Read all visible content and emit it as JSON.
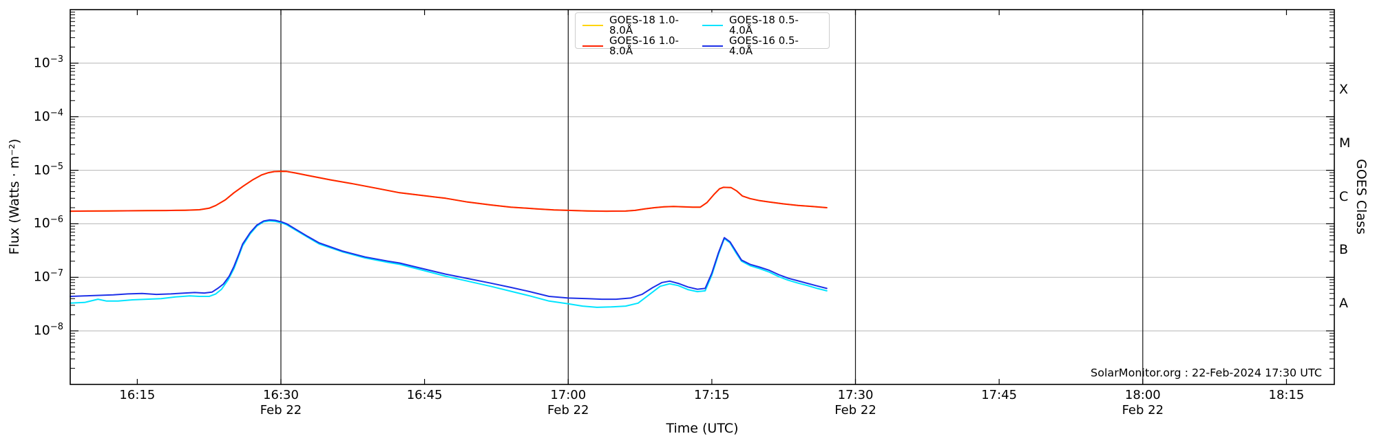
{
  "chart_data": {
    "type": "line",
    "title": "",
    "xlabel": "Time (UTC)",
    "ylabel": "Flux (Watts · m⁻²)",
    "ylabel_right": "GOES Class",
    "credit": "SolarMonitor.org : 22-Feb-2024 17:30 UTC",
    "x_axis": {
      "unit": "minutes after 16:00 UTC, 22-Feb-2024",
      "range_minutes": [
        8,
        140
      ],
      "major_ticks": [
        {
          "t": 15,
          "label": "16:15"
        },
        {
          "t": 30,
          "label": "16:30",
          "date": "Feb 22"
        },
        {
          "t": 45,
          "label": "16:45"
        },
        {
          "t": 60,
          "label": "17:00",
          "date": "Feb 22"
        },
        {
          "t": 75,
          "label": "17:15"
        },
        {
          "t": 90,
          "label": "17:30",
          "date": "Feb 22"
        },
        {
          "t": 105,
          "label": "17:45"
        },
        {
          "t": 120,
          "label": "18:00",
          "date": "Feb 22"
        },
        {
          "t": 135,
          "label": "18:15"
        }
      ],
      "vertical_lines_t": [
        30,
        60,
        90,
        120
      ]
    },
    "y_axis": {
      "scale": "log10",
      "unit": "W m^-2",
      "range_exponents": [
        -9,
        -2
      ],
      "labeled_exponents": [
        -3,
        -4,
        -5,
        -6,
        -7,
        -8
      ],
      "class_labels": [
        {
          "label": "X",
          "decade": -4
        },
        {
          "label": "M",
          "decade": -5
        },
        {
          "label": "C",
          "decade": -6
        },
        {
          "label": "B",
          "decade": -7
        },
        {
          "label": "A",
          "decade": -8
        }
      ]
    },
    "grid": {
      "horizontal_decades": [
        -3,
        -4,
        -5,
        -6,
        -7,
        -8
      ],
      "grid_color": "#b5b5b5",
      "vline_color": "#111111"
    },
    "legend": {
      "position": "top-center",
      "entries": [
        {
          "label": "GOES-18 1.0-8.0Å",
          "color": "#ffd400"
        },
        {
          "label": "GOES-16 1.0-8.0Å",
          "color": "#ff2200"
        },
        {
          "label": "GOES-18 0.5-4.0Å",
          "color": "#00e4ff"
        },
        {
          "label": "GOES-16 0.5-4.0Å",
          "color": "#1c2fe8"
        }
      ]
    },
    "series": [
      {
        "name": "GOES-18 1.0-8.0Å",
        "color": "#ffd400",
        "points": [
          [
            8,
            1.72e-06
          ],
          [
            10,
            1.73e-06
          ],
          [
            12,
            1.74e-06
          ],
          [
            14,
            1.75e-06
          ],
          [
            16,
            1.76e-06
          ],
          [
            18,
            1.77e-06
          ],
          [
            20,
            1.79e-06
          ],
          [
            21.5,
            1.83e-06
          ],
          [
            22.5,
            1.95e-06
          ],
          [
            23.2,
            2.2e-06
          ],
          [
            24.2,
            2.8e-06
          ],
          [
            25.1,
            3.8e-06
          ],
          [
            26.1,
            5.1e-06
          ],
          [
            27.1,
            6.7e-06
          ],
          [
            28,
            8.2e-06
          ],
          [
            28.7,
            9e-06
          ],
          [
            29.3,
            9.45e-06
          ],
          [
            30,
            9.55e-06
          ],
          [
            30.6,
            9.5e-06
          ],
          [
            31.5,
            8.9e-06
          ],
          [
            32.8,
            8e-06
          ],
          [
            35.2,
            6.6e-06
          ],
          [
            37.5,
            5.6e-06
          ],
          [
            40,
            4.6e-06
          ],
          [
            42.4,
            3.8e-06
          ],
          [
            45,
            3.35e-06
          ],
          [
            47.2,
            3e-06
          ],
          [
            49.5,
            2.55e-06
          ],
          [
            51.9,
            2.25e-06
          ],
          [
            54,
            2.05e-06
          ],
          [
            56.7,
            1.9e-06
          ],
          [
            58.5,
            1.82e-06
          ],
          [
            60,
            1.78e-06
          ],
          [
            62,
            1.74e-06
          ],
          [
            64,
            1.72e-06
          ],
          [
            66,
            1.73e-06
          ],
          [
            67,
            1.78e-06
          ],
          [
            68,
            1.9e-06
          ],
          [
            69,
            2e-06
          ],
          [
            70,
            2.07e-06
          ],
          [
            71,
            2.1e-06
          ],
          [
            72,
            2.08e-06
          ],
          [
            73,
            2.05e-06
          ],
          [
            73.8,
            2.05e-06
          ],
          [
            74.5,
            2.5e-06
          ],
          [
            75.2,
            3.5e-06
          ],
          [
            75.8,
            4.5e-06
          ],
          [
            76.2,
            4.8e-06
          ],
          [
            77,
            4.75e-06
          ],
          [
            77.6,
            4.1e-06
          ],
          [
            78.2,
            3.3e-06
          ],
          [
            79,
            2.95e-06
          ],
          [
            80,
            2.7e-06
          ],
          [
            81,
            2.55e-06
          ],
          [
            82.5,
            2.35e-06
          ],
          [
            84,
            2.2e-06
          ],
          [
            85.5,
            2.1e-06
          ],
          [
            87,
            2e-06
          ]
        ]
      },
      {
        "name": "GOES-16 1.0-8.0Å",
        "color": "#ff2200",
        "points": [
          [
            8,
            1.72e-06
          ],
          [
            10,
            1.73e-06
          ],
          [
            12,
            1.74e-06
          ],
          [
            14,
            1.75e-06
          ],
          [
            16,
            1.76e-06
          ],
          [
            18,
            1.77e-06
          ],
          [
            20,
            1.79e-06
          ],
          [
            21.5,
            1.83e-06
          ],
          [
            22.5,
            1.95e-06
          ],
          [
            23.2,
            2.2e-06
          ],
          [
            24.2,
            2.8e-06
          ],
          [
            25.1,
            3.8e-06
          ],
          [
            26.1,
            5.1e-06
          ],
          [
            27.1,
            6.7e-06
          ],
          [
            28,
            8.2e-06
          ],
          [
            28.7,
            9e-06
          ],
          [
            29.3,
            9.45e-06
          ],
          [
            30,
            9.55e-06
          ],
          [
            30.6,
            9.5e-06
          ],
          [
            31.5,
            8.9e-06
          ],
          [
            32.8,
            8e-06
          ],
          [
            35.2,
            6.6e-06
          ],
          [
            37.5,
            5.6e-06
          ],
          [
            40,
            4.6e-06
          ],
          [
            42.4,
            3.8e-06
          ],
          [
            45,
            3.35e-06
          ],
          [
            47.2,
            3e-06
          ],
          [
            49.5,
            2.55e-06
          ],
          [
            51.9,
            2.25e-06
          ],
          [
            54,
            2.05e-06
          ],
          [
            56.7,
            1.9e-06
          ],
          [
            58.5,
            1.82e-06
          ],
          [
            60,
            1.78e-06
          ],
          [
            62,
            1.74e-06
          ],
          [
            64,
            1.72e-06
          ],
          [
            66,
            1.73e-06
          ],
          [
            67,
            1.78e-06
          ],
          [
            68,
            1.9e-06
          ],
          [
            69,
            2e-06
          ],
          [
            70,
            2.07e-06
          ],
          [
            71,
            2.1e-06
          ],
          [
            72,
            2.08e-06
          ],
          [
            73,
            2.05e-06
          ],
          [
            73.8,
            2.05e-06
          ],
          [
            74.5,
            2.5e-06
          ],
          [
            75.2,
            3.5e-06
          ],
          [
            75.8,
            4.5e-06
          ],
          [
            76.2,
            4.8e-06
          ],
          [
            77,
            4.75e-06
          ],
          [
            77.6,
            4.1e-06
          ],
          [
            78.2,
            3.3e-06
          ],
          [
            79,
            2.95e-06
          ],
          [
            80,
            2.7e-06
          ],
          [
            81,
            2.55e-06
          ],
          [
            82.5,
            2.35e-06
          ],
          [
            84,
            2.2e-06
          ],
          [
            85.5,
            2.1e-06
          ],
          [
            87,
            2e-06
          ]
        ]
      },
      {
        "name": "GOES-18 0.5-4.0Å",
        "color": "#00e4ff",
        "points": [
          [
            8,
            3.3e-08
          ],
          [
            9.5,
            3.4e-08
          ],
          [
            10.9,
            3.9e-08
          ],
          [
            11.8,
            3.6e-08
          ],
          [
            13,
            3.6e-08
          ],
          [
            14.5,
            3.8e-08
          ],
          [
            16,
            3.9e-08
          ],
          [
            17.5,
            4e-08
          ],
          [
            19,
            4.3e-08
          ],
          [
            20.5,
            4.5e-08
          ],
          [
            21.5,
            4.4e-08
          ],
          [
            22.5,
            4.4e-08
          ],
          [
            23.2,
            4.9e-08
          ],
          [
            23.8,
            6e-08
          ],
          [
            24.5,
            9e-08
          ],
          [
            25.1,
            1.45e-07
          ],
          [
            25.6,
            2.5e-07
          ],
          [
            26,
            3.9e-07
          ],
          [
            26.8,
            6.5e-07
          ],
          [
            27.5,
            9.1e-07
          ],
          [
            28.2,
            1.09e-06
          ],
          [
            28.8,
            1.13e-06
          ],
          [
            29.4,
            1.11e-06
          ],
          [
            30.1,
            1.04e-06
          ],
          [
            30.6,
            9.6e-07
          ],
          [
            31.6,
            7.5e-07
          ],
          [
            32.8,
            5.6e-07
          ],
          [
            34,
            4.2e-07
          ],
          [
            36.4,
            3e-07
          ],
          [
            38.8,
            2.3e-07
          ],
          [
            41.2,
            1.9e-07
          ],
          [
            42.4,
            1.75e-07
          ],
          [
            44.5,
            1.4e-07
          ],
          [
            47.2,
            1.05e-07
          ],
          [
            49.5,
            8.5e-08
          ],
          [
            51.9,
            6.8e-08
          ],
          [
            54,
            5.5e-08
          ],
          [
            56,
            4.5e-08
          ],
          [
            58,
            3.6e-08
          ],
          [
            60,
            3.2e-08
          ],
          [
            61.5,
            2.9e-08
          ],
          [
            63,
            2.75e-08
          ],
          [
            64.5,
            2.8e-08
          ],
          [
            66,
            2.9e-08
          ],
          [
            67.3,
            3.3e-08
          ],
          [
            68.5,
            4.8e-08
          ],
          [
            69.6,
            6.8e-08
          ],
          [
            70.6,
            7.6e-08
          ],
          [
            71.5,
            7e-08
          ],
          [
            72.5,
            5.9e-08
          ],
          [
            73.5,
            5.4e-08
          ],
          [
            74.3,
            5.6e-08
          ],
          [
            75,
            1.1e-07
          ],
          [
            75.7,
            2.7e-07
          ],
          [
            76.3,
            5.3e-07
          ],
          [
            76.9,
            4.4e-07
          ],
          [
            77.5,
            2.9e-07
          ],
          [
            78.1,
            2e-07
          ],
          [
            79,
            1.65e-07
          ],
          [
            80,
            1.45e-07
          ],
          [
            81,
            1.25e-07
          ],
          [
            82,
            1.03e-07
          ],
          [
            83,
            8.8e-08
          ],
          [
            84,
            7.8e-08
          ],
          [
            85,
            7e-08
          ],
          [
            86,
            6.2e-08
          ],
          [
            87,
            5.6e-08
          ]
        ]
      },
      {
        "name": "GOES-16 0.5-4.0Å",
        "color": "#1c2fe8",
        "points": [
          [
            8,
            4.4e-08
          ],
          [
            9.5,
            4.5e-08
          ],
          [
            11,
            4.6e-08
          ],
          [
            12.5,
            4.7e-08
          ],
          [
            14,
            4.9e-08
          ],
          [
            15.5,
            5e-08
          ],
          [
            17,
            4.8e-08
          ],
          [
            18.5,
            4.9e-08
          ],
          [
            20,
            5.1e-08
          ],
          [
            21,
            5.2e-08
          ],
          [
            22,
            5.1e-08
          ],
          [
            22.8,
            5.3e-08
          ],
          [
            23.4,
            6.2e-08
          ],
          [
            24,
            7.5e-08
          ],
          [
            24.6,
            1.05e-07
          ],
          [
            25.1,
            1.6e-07
          ],
          [
            25.6,
            2.7e-07
          ],
          [
            26,
            4.2e-07
          ],
          [
            26.8,
            6.9e-07
          ],
          [
            27.5,
            9.5e-07
          ],
          [
            28.2,
            1.13e-06
          ],
          [
            28.8,
            1.18e-06
          ],
          [
            29.4,
            1.16e-06
          ],
          [
            30.1,
            1.08e-06
          ],
          [
            30.6,
            1e-06
          ],
          [
            31.6,
            7.8e-07
          ],
          [
            32.8,
            5.8e-07
          ],
          [
            34,
            4.4e-07
          ],
          [
            36.4,
            3.1e-07
          ],
          [
            38.8,
            2.4e-07
          ],
          [
            41.2,
            2e-07
          ],
          [
            42.4,
            1.85e-07
          ],
          [
            44.5,
            1.5e-07
          ],
          [
            47.2,
            1.15e-07
          ],
          [
            49.5,
            9.5e-08
          ],
          [
            51.9,
            7.8e-08
          ],
          [
            54,
            6.5e-08
          ],
          [
            56,
            5.4e-08
          ],
          [
            58,
            4.4e-08
          ],
          [
            60,
            4.1e-08
          ],
          [
            62,
            4e-08
          ],
          [
            63.5,
            3.9e-08
          ],
          [
            65,
            3.9e-08
          ],
          [
            66.5,
            4.1e-08
          ],
          [
            67.7,
            4.8e-08
          ],
          [
            68.8,
            6.4e-08
          ],
          [
            69.8,
            8e-08
          ],
          [
            70.6,
            8.5e-08
          ],
          [
            71.5,
            7.7e-08
          ],
          [
            72.5,
            6.6e-08
          ],
          [
            73.5,
            6e-08
          ],
          [
            74.3,
            6.2e-08
          ],
          [
            75,
            1.2e-07
          ],
          [
            75.7,
            2.9e-07
          ],
          [
            76.3,
            5.5e-07
          ],
          [
            76.9,
            4.6e-07
          ],
          [
            77.5,
            3.1e-07
          ],
          [
            78.1,
            2.1e-07
          ],
          [
            79,
            1.75e-07
          ],
          [
            80,
            1.55e-07
          ],
          [
            81,
            1.35e-07
          ],
          [
            82,
            1.12e-07
          ],
          [
            83,
            9.6e-08
          ],
          [
            84,
            8.6e-08
          ],
          [
            85,
            7.7e-08
          ],
          [
            86,
            6.9e-08
          ],
          [
            87,
            6.2e-08
          ]
        ]
      }
    ]
  }
}
